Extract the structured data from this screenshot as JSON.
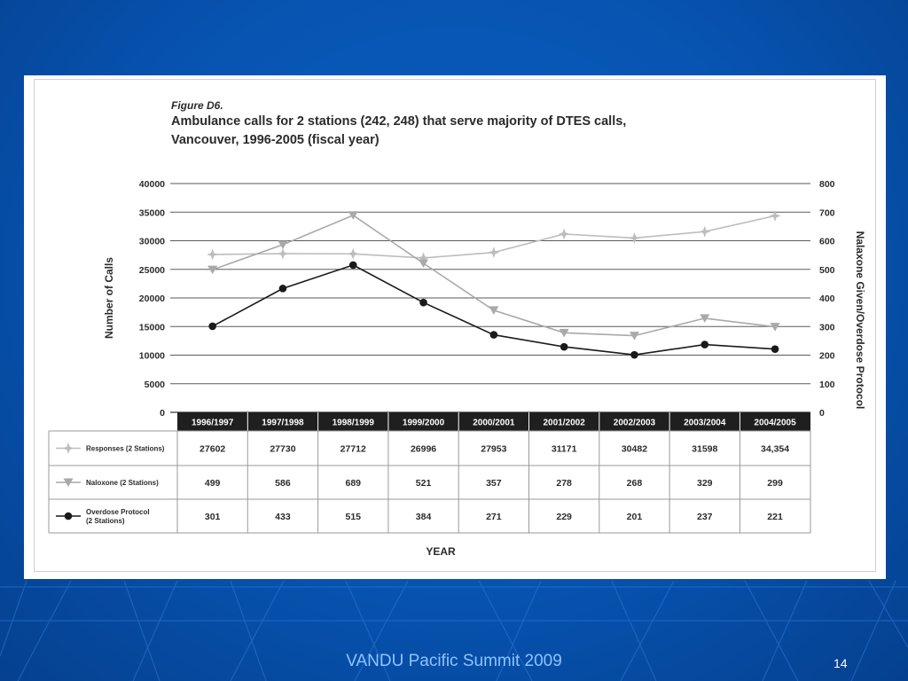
{
  "slide": {
    "footer": "VANDU Pacific Summit 2009",
    "number": "14"
  },
  "figure": {
    "label": "Figure D6.",
    "title_line1": "Ambulance calls for 2 stations (242, 248) that serve majority of DTES calls,",
    "title_line2": "Vancouver, 1996-2005 (fiscal year)"
  },
  "chart_data": {
    "type": "line",
    "categories": [
      "1996/1997",
      "1997/1998",
      "1998/1999",
      "1999/2000",
      "2000/2001",
      "2001/2002",
      "2002/2003",
      "2003/2004",
      "2004/2005"
    ],
    "ylabel": "Number of Calls",
    "y2label": "Nalaxone Given/Overdose Protocol",
    "xlabel": "YEAR",
    "ylim": [
      0,
      40000
    ],
    "y2lim": [
      0,
      800
    ],
    "yticks": [
      "40000",
      "35000",
      "30000",
      "25000",
      "20000",
      "15000",
      "10000",
      "5000",
      "0"
    ],
    "y2ticks": [
      "800",
      "700",
      "600",
      "500",
      "400",
      "300",
      "200",
      "100",
      "0"
    ],
    "grid": true,
    "series": [
      {
        "name": "Responses (2 Stations)",
        "axis": "left",
        "marker": "star",
        "color": "#bdbdbd",
        "values": [
          27602,
          27730,
          27712,
          26996,
          27953,
          31171,
          30482,
          31598,
          34354
        ],
        "labels": [
          "27602",
          "27730",
          "27712",
          "26996",
          "27953",
          "31171",
          "30482",
          "31598",
          "34,354"
        ]
      },
      {
        "name": "Naloxone (2 Stations)",
        "axis": "right",
        "marker": "triangle-down",
        "color": "#a9a9a9",
        "values": [
          499,
          586,
          689,
          521,
          357,
          278,
          268,
          329,
          299
        ],
        "labels": [
          "499",
          "586",
          "689",
          "521",
          "357",
          "278",
          "268",
          "329",
          "299"
        ]
      },
      {
        "name": "Overdose Protocol (2 Stations)",
        "legend_lines": [
          "Overdose Protocol",
          "(2 Stations)"
        ],
        "axis": "right",
        "marker": "circle",
        "color": "#1a1a1a",
        "values": [
          301,
          433,
          515,
          384,
          271,
          229,
          201,
          237,
          221
        ],
        "labels": [
          "301",
          "433",
          "515",
          "384",
          "271",
          "229",
          "201",
          "237",
          "221"
        ]
      }
    ]
  }
}
